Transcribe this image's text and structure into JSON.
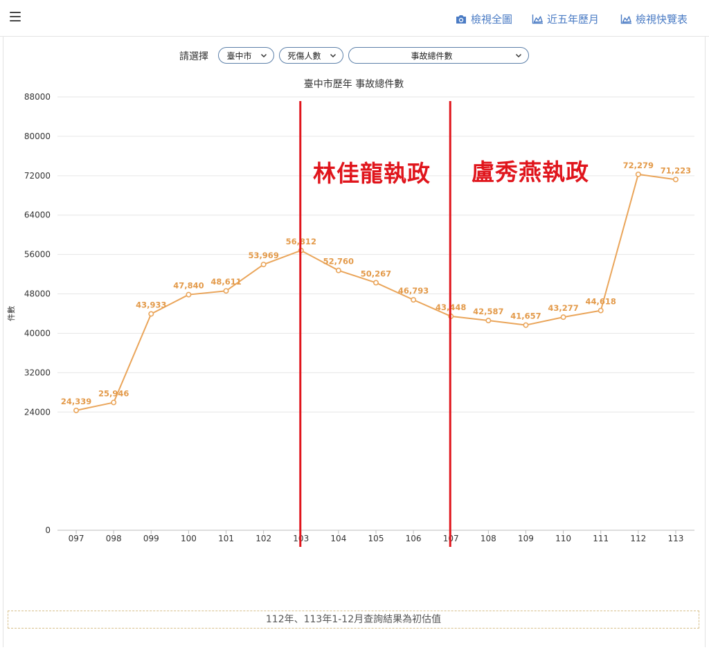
{
  "header": {
    "nav": [
      {
        "label": "檢視全圖",
        "icon": "camera-icon"
      },
      {
        "label": "近五年歷月",
        "icon": "area-chart-icon"
      },
      {
        "label": "檢視快覽表",
        "icon": "area-chart-icon"
      }
    ]
  },
  "selector": {
    "label": "請選擇",
    "city": "臺中市",
    "metric": "死傷人數",
    "type": "事故總件數"
  },
  "chart_data": {
    "type": "line",
    "title": "臺中市歷年 事故總件數",
    "ylabel": "件數",
    "xlabel": "",
    "categories": [
      "097",
      "098",
      "099",
      "100",
      "101",
      "102",
      "103",
      "104",
      "105",
      "106",
      "107",
      "108",
      "109",
      "110",
      "111",
      "112",
      "113"
    ],
    "values": [
      24339,
      25946,
      43933,
      47840,
      48611,
      53969,
      56812,
      52760,
      50267,
      46793,
      43448,
      42587,
      41657,
      43277,
      44618,
      72279,
      71223
    ],
    "data_labels": [
      "24,339",
      "25,946",
      "43,933",
      "47,840",
      "48,611",
      "53,969",
      "56,812",
      "52,760",
      "50,267",
      "46,793",
      "43,448",
      "42,587",
      "41,657",
      "43,277",
      "44,618",
      "72,279",
      "71,223"
    ],
    "ylim": [
      0,
      88000
    ],
    "yticks": [
      0,
      24000,
      32000,
      40000,
      48000,
      56000,
      64000,
      72000,
      80000,
      88000
    ],
    "grid": true,
    "line_color": "#eaa55a",
    "annotations": [
      {
        "text": "林佳龍執政",
        "color": "#e0151c",
        "at_category": "103"
      },
      {
        "text": "盧秀燕執政",
        "color": "#e0151c",
        "at_category": "107"
      }
    ]
  },
  "footnote": "112年、113年1-12月查詢結果為初估值"
}
